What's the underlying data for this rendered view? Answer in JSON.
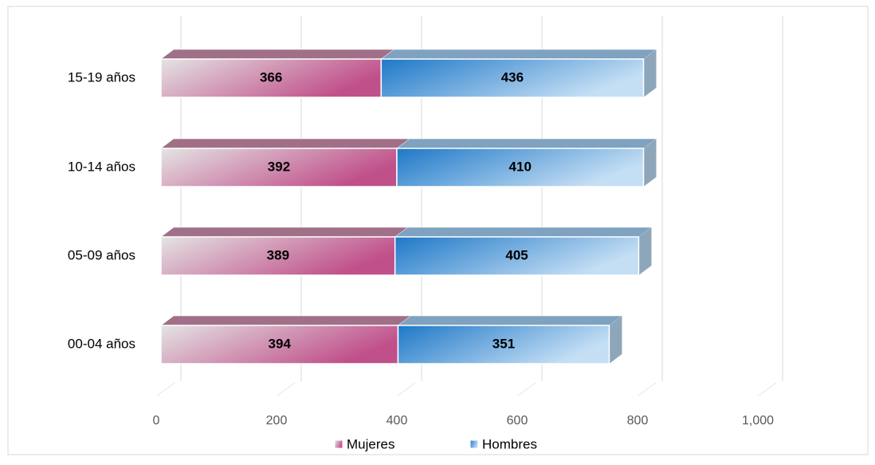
{
  "chart_data": {
    "type": "bar",
    "orientation": "horizontal",
    "stacked": true,
    "categories": [
      "00-04 años",
      "05-09 años",
      "10-14 años",
      "15-19 años"
    ],
    "series": [
      {
        "name": "Mujeres",
        "color": "#c0508a",
        "values": [
          394,
          389,
          392,
          366
        ]
      },
      {
        "name": "Hombres",
        "color": "#1e78c8",
        "values": [
          351,
          405,
          410,
          436
        ]
      }
    ],
    "xlim": [
      0,
      1200
    ],
    "xticks": [
      0,
      200,
      400,
      600,
      800,
      {
        "value": 1000,
        "label": "1,000"
      }
    ],
    "grid": true,
    "legend": "bottom"
  }
}
